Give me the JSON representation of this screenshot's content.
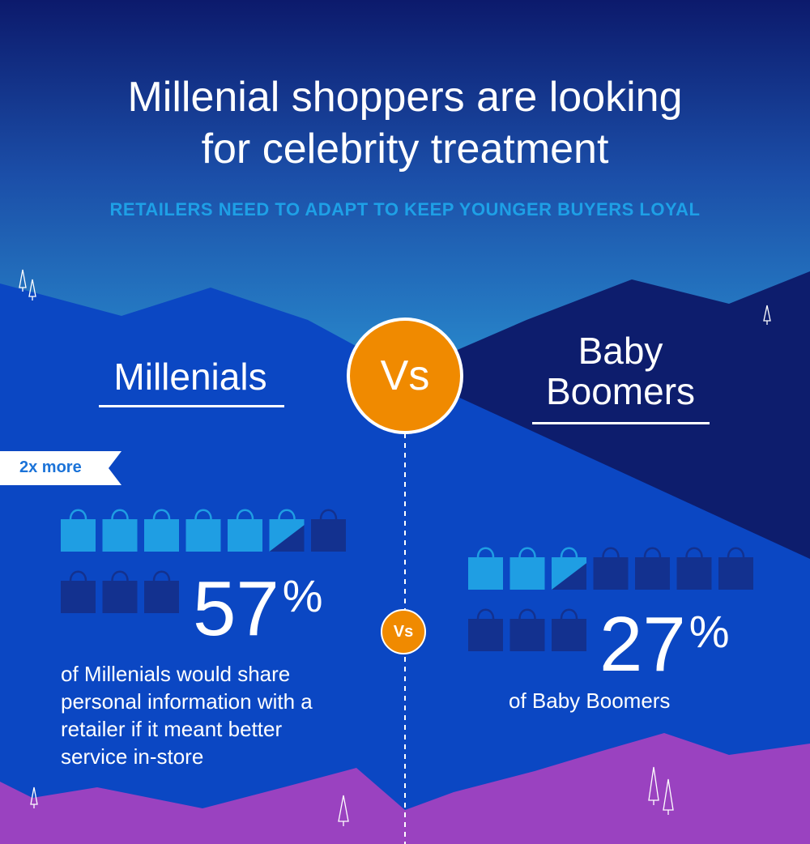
{
  "header": {
    "title_line1": "Millenial shoppers are looking",
    "title_line2": "for celebrity treatment",
    "subtitle": "RETAILERS NEED TO ADAPT TO KEEP YOUNGER BUYERS LOYAL"
  },
  "vs_label": "Vs",
  "millenials": {
    "heading": "Millenials",
    "badge": "2x more",
    "percent": "57",
    "percent_sign": "%",
    "fill_fraction": 0.57,
    "description": "of Millenials would share personal information with a retailer if it meant better service in-store"
  },
  "boomers": {
    "heading_line1": "Baby",
    "heading_line2": "Boomers",
    "percent": "27",
    "percent_sign": "%",
    "fill_fraction": 0.27,
    "description": "of  Baby Boomers"
  },
  "colors": {
    "accent_orange": "#f08a00",
    "bag_filled": "#1f9ee3",
    "bag_empty": "#13318f",
    "subtitle_blue": "#1ea0e6",
    "mountain_purple": "#9a42c0"
  }
}
